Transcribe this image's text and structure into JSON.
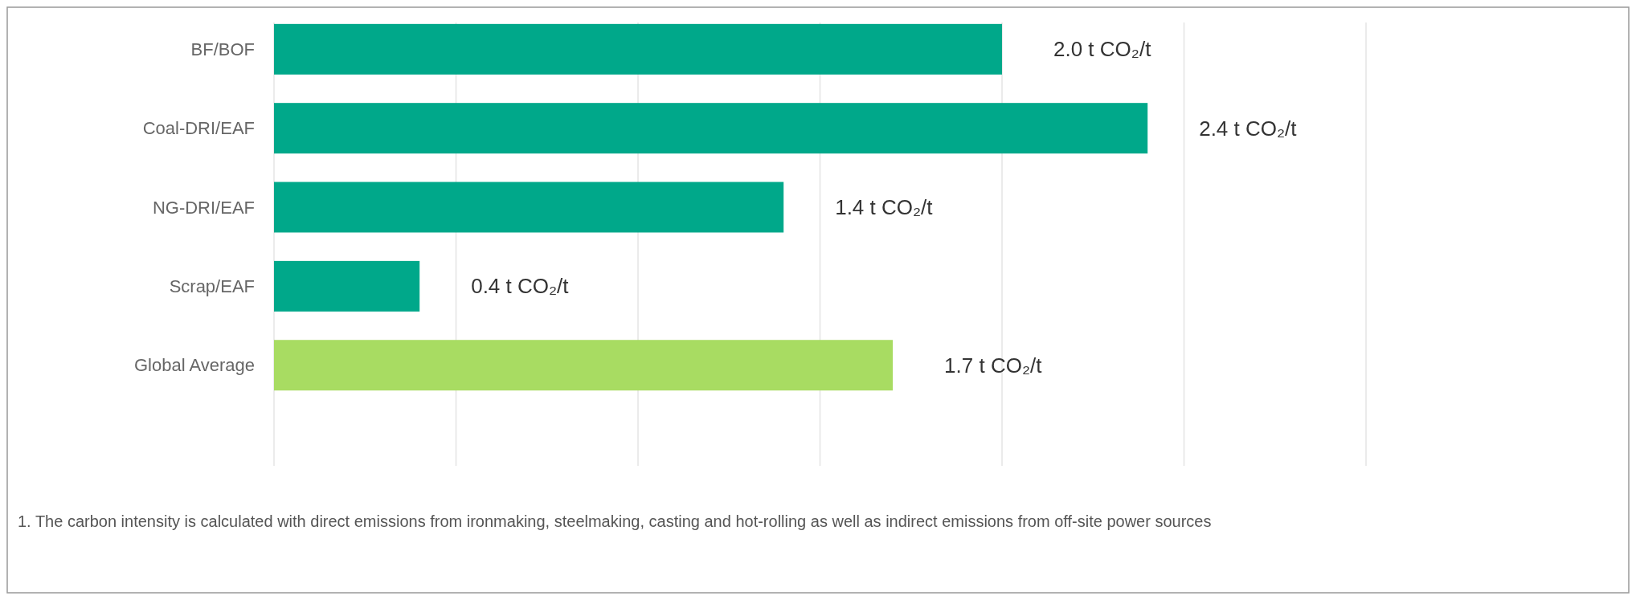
{
  "chart_data": {
    "type": "bar",
    "orientation": "horizontal",
    "categories": [
      "BF/BOF",
      "Coal-DRI/EAF",
      "NG-DRI/EAF",
      "Scrap/EAF",
      "Global Average"
    ],
    "values": [
      2.0,
      2.4,
      1.4,
      0.4,
      1.7
    ],
    "colors": [
      "#00a88a",
      "#00a88a",
      "#00a88a",
      "#00a88a",
      "#a8dc62"
    ],
    "value_labels": [
      "2.0 t CO₂/t",
      "2.4 t CO₂/t",
      "1.4 t CO₂/t",
      "0.4 t CO₂/t",
      "1.7 t CO₂/t"
    ],
    "xlim": [
      0,
      3
    ],
    "xticks": [
      {
        "value": 0,
        "label": null
      },
      {
        "value": 0.5,
        "label": null
      },
      {
        "value": 1,
        "label": null
      },
      {
        "value": 1.5,
        "label": null
      },
      {
        "value": 2,
        "label": null
      },
      {
        "value": 2.5,
        "label": null
      },
      {
        "value": 3,
        "label": null
      }
    ],
    "grid": "x",
    "annotations": [
      "1. The carbon intensity is calculated with direct emissions from ironmaking, steelmaking, casting and hot-rolling as well as indirect emissions from off-site power sources"
    ]
  }
}
